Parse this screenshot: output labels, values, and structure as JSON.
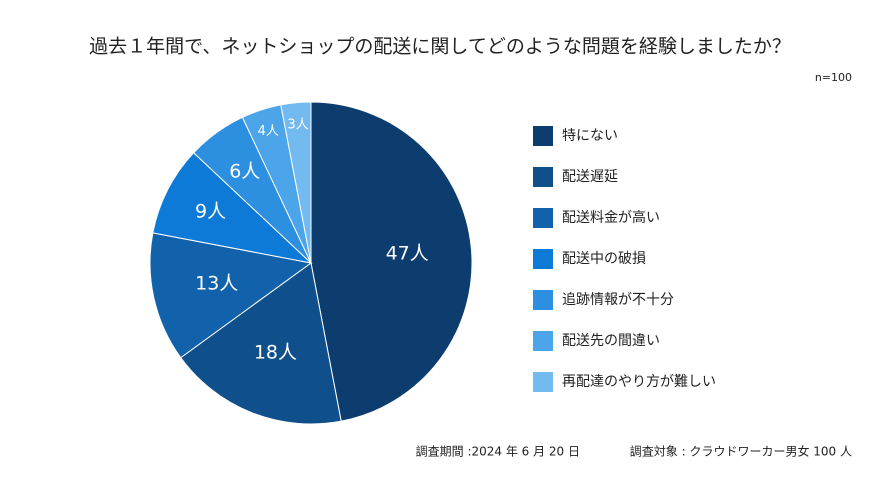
{
  "chart_data": {
    "type": "pie",
    "title": "過去１年間で、ネットショップの配送に関してどのような問題を経験しましたか？",
    "subtitle": "n=100",
    "categories": [
      "特にない",
      "配送遅延",
      "配送料金が高い",
      "配送中の破損",
      "追跡情報が不十分",
      "配送先の間違い",
      "再配達のやり方が難しい"
    ],
    "values": [
      47,
      18,
      13,
      9,
      6,
      4,
      3
    ],
    "value_labels": [
      "47人",
      "18人",
      "13人",
      "9人",
      "6人",
      "4人",
      "3人"
    ],
    "colors": [
      "#0d3d6e",
      "#0f508c",
      "#1162ab",
      "#0c7ad6",
      "#2d8fe0",
      "#4ca4e9",
      "#72baf0"
    ],
    "legend": "right",
    "footnotes": [
      "調査期間 :2024 年 6 月 20 日",
      "調査対象 : クラウドワーカー男女 100 人"
    ]
  }
}
